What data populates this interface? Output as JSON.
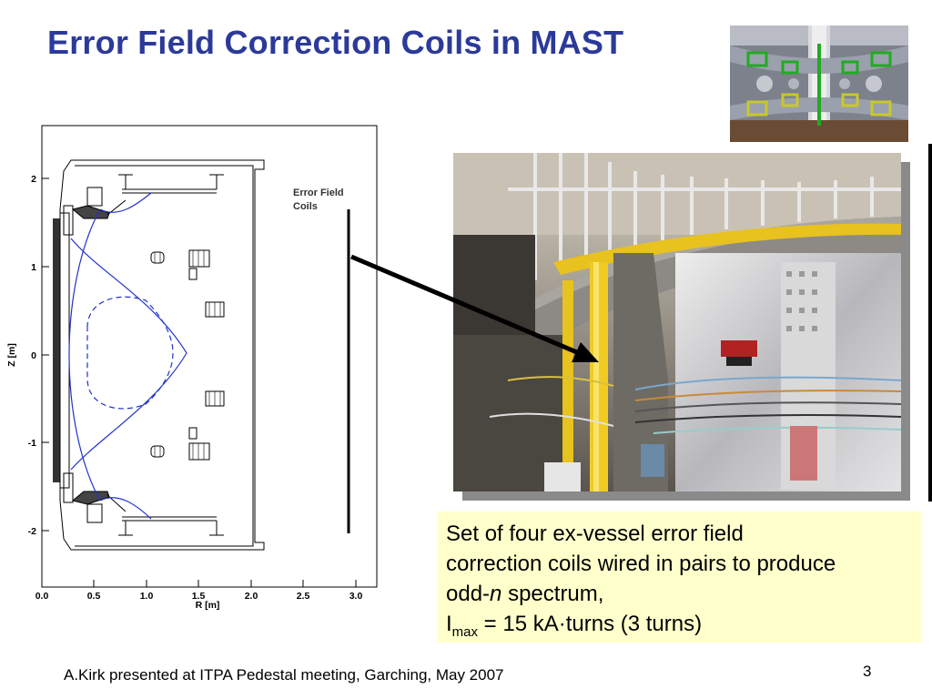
{
  "slide": {
    "title": "Error Field Correction Coils in MAST",
    "footer": "A.Kirk presented at ITPA Pedestal meeting, Garching, May 2007",
    "page_number": "3"
  },
  "figure": {
    "coil_label_line1": "Error Field",
    "coil_label_line2": "Coils",
    "xlabel": "R [m]",
    "ylabel": "Z [m]",
    "x_ticks": [
      "0.0",
      "0.5",
      "1.0",
      "1.5",
      "2.0",
      "2.5",
      "3.0"
    ],
    "y_ticks": [
      "2",
      "1",
      "0",
      "-1",
      "-2"
    ]
  },
  "caption": {
    "line1": "Set of four ex-vessel error field",
    "line2": "correction coils wired in pairs to produce",
    "line3_prefix": "odd-",
    "line3_italic": "n",
    "line3_suffix": " spectrum,",
    "line4_I": "I",
    "line4_sub": "max",
    "line4_rest": " = 15 kA·turns (3 turns)"
  },
  "colors": {
    "title": "#2b3a9a",
    "caption_bg": "#ffffcc",
    "flux_lines": "#2233cc"
  }
}
